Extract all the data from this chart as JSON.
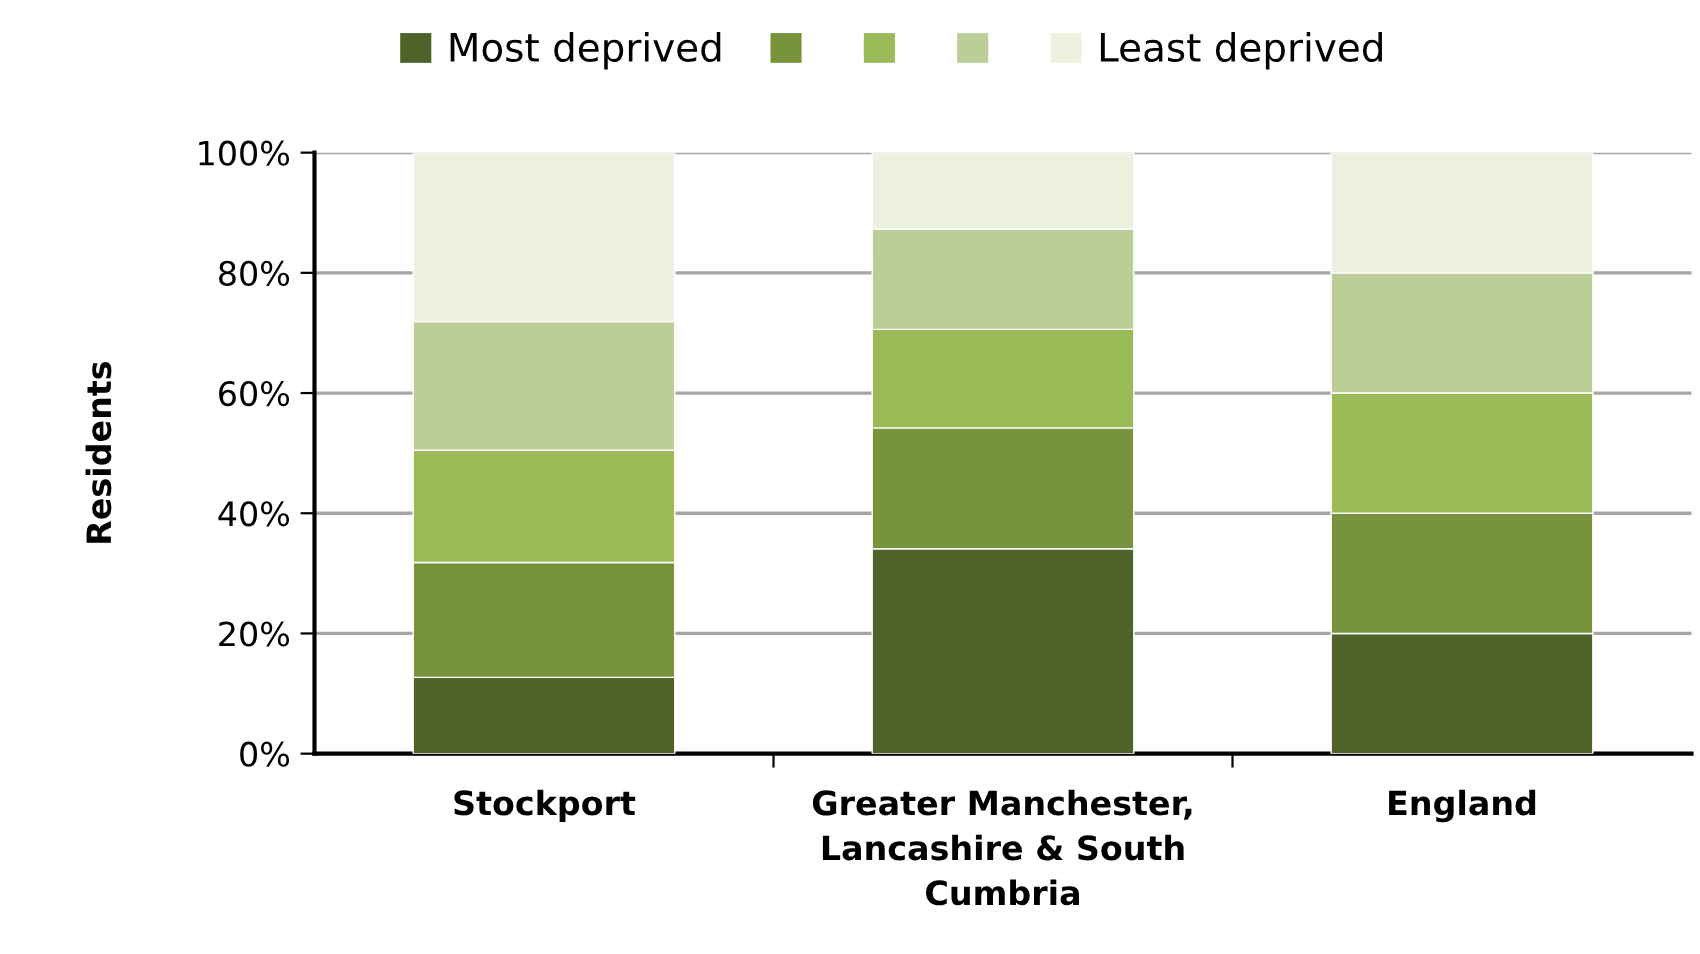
{
  "chart_data": {
    "type": "bar",
    "stacked": true,
    "ylabel": "Residents",
    "categories": [
      "Stockport",
      "Greater Manchester,\nLancashire & South\nCumbria",
      "England"
    ],
    "series": [
      {
        "name": "Most deprived",
        "color": "#4f6228",
        "values": [
          12.7,
          34.1,
          20
        ]
      },
      {
        "color": "#77933c",
        "values": [
          19.1,
          20.1,
          20
        ]
      },
      {
        "color": "#9bbb59",
        "values": [
          18.7,
          16.4,
          20
        ]
      },
      {
        "color": "#bbce97",
        "values": [
          21.4,
          16.7,
          20
        ]
      },
      {
        "name": "Least deprived",
        "color": "#ebf1de",
        "values": [
          28.1,
          12.7,
          20
        ]
      }
    ],
    "ylim": [
      0,
      100
    ],
    "yticks": [
      {
        "value": 0,
        "label": "0%"
      },
      {
        "value": 20,
        "label": "20%"
      },
      {
        "value": 40,
        "label": "40%"
      },
      {
        "value": 60,
        "label": "60%"
      },
      {
        "value": 80,
        "label": "80%"
      },
      {
        "value": 100,
        "label": "100%"
      }
    ],
    "grid": "y",
    "legend": "top"
  }
}
